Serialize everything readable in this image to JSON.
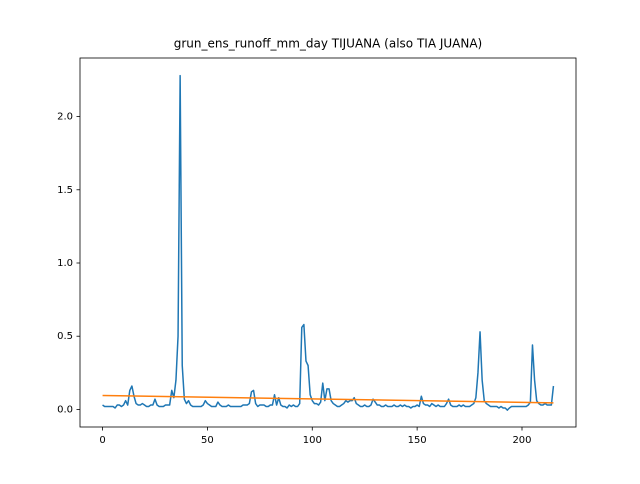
{
  "chart_data": {
    "type": "line",
    "title": "grun_ens_runoff_mm_day TIJUANA (also TIA JUANA)",
    "xlim": [
      -10.75,
      225.75
    ],
    "ylim": [
      -0.12,
      2.4
    ],
    "xticks": [
      0,
      50,
      100,
      150,
      200
    ],
    "yticks": [
      {
        "value": 0,
        "label": "0.0"
      },
      0.5,
      {
        "value": 1,
        "label": "1.0"
      },
      1.5,
      {
        "value": 2,
        "label": "2.0"
      }
    ],
    "grid": false,
    "series": [
      {
        "color": "#1f77b4",
        "x": [
          0,
          1,
          2,
          3,
          4,
          5,
          6,
          7,
          8,
          9,
          10,
          11,
          12,
          13,
          14,
          15,
          16,
          17,
          18,
          19,
          20,
          21,
          22,
          23,
          24,
          25,
          26,
          27,
          28,
          29,
          30,
          31,
          32,
          33,
          34,
          35,
          36,
          37,
          38,
          39,
          40,
          41,
          42,
          43,
          44,
          45,
          46,
          47,
          48,
          49,
          50,
          51,
          52,
          53,
          54,
          55,
          56,
          57,
          58,
          59,
          60,
          61,
          62,
          63,
          64,
          65,
          66,
          67,
          68,
          69,
          70,
          71,
          72,
          73,
          74,
          75,
          76,
          77,
          78,
          79,
          80,
          81,
          82,
          83,
          84,
          85,
          86,
          87,
          88,
          89,
          90,
          91,
          92,
          93,
          94,
          95,
          96,
          97,
          98,
          99,
          100,
          101,
          102,
          103,
          104,
          105,
          106,
          107,
          108,
          109,
          110,
          111,
          112,
          113,
          114,
          115,
          116,
          117,
          118,
          119,
          120,
          121,
          122,
          123,
          124,
          125,
          126,
          127,
          128,
          129,
          130,
          131,
          132,
          133,
          134,
          135,
          136,
          137,
          138,
          139,
          140,
          141,
          142,
          143,
          144,
          145,
          146,
          147,
          148,
          149,
          150,
          151,
          152,
          153,
          154,
          155,
          156,
          157,
          158,
          159,
          160,
          161,
          162,
          163,
          164,
          165,
          166,
          167,
          168,
          169,
          170,
          171,
          172,
          173,
          174,
          175,
          176,
          177,
          178,
          179,
          180,
          181,
          182,
          183,
          184,
          185,
          186,
          187,
          188,
          189,
          190,
          191,
          192,
          193,
          194,
          195,
          196,
          197,
          198,
          199,
          200,
          201,
          202,
          203,
          204,
          205,
          206,
          207,
          208,
          209,
          210,
          211,
          212,
          213,
          214,
          215
        ],
        "values": [
          0.03,
          0.02,
          0.02,
          0.02,
          0.02,
          0.02,
          0.01,
          0.03,
          0.03,
          0.02,
          0.03,
          0.06,
          0.03,
          0.13,
          0.16,
          0.09,
          0.04,
          0.03,
          0.03,
          0.04,
          0.03,
          0.02,
          0.02,
          0.03,
          0.03,
          0.07,
          0.03,
          0.02,
          0.02,
          0.02,
          0.03,
          0.03,
          0.03,
          0.13,
          0.08,
          0.2,
          0.5,
          2.28,
          0.3,
          0.07,
          0.04,
          0.06,
          0.03,
          0.02,
          0.02,
          0.02,
          0.02,
          0.02,
          0.03,
          0.06,
          0.04,
          0.03,
          0.02,
          0.02,
          0.02,
          0.05,
          0.03,
          0.02,
          0.02,
          0.02,
          0.03,
          0.02,
          0.02,
          0.02,
          0.02,
          0.02,
          0.02,
          0.03,
          0.03,
          0.03,
          0.04,
          0.12,
          0.13,
          0.04,
          0.02,
          0.03,
          0.03,
          0.03,
          0.02,
          0.02,
          0.03,
          0.03,
          0.1,
          0.03,
          0.08,
          0.03,
          0.02,
          0.02,
          0.01,
          0.03,
          0.02,
          0.03,
          0.02,
          0.02,
          0.04,
          0.56,
          0.58,
          0.33,
          0.3,
          0.1,
          0.06,
          0.04,
          0.04,
          0.03,
          0.05,
          0.18,
          0.06,
          0.14,
          0.14,
          0.06,
          0.04,
          0.03,
          0.02,
          0.02,
          0.03,
          0.04,
          0.06,
          0.05,
          0.06,
          0.06,
          0.08,
          0.04,
          0.03,
          0.02,
          0.02,
          0.03,
          0.02,
          0.02,
          0.03,
          0.07,
          0.05,
          0.03,
          0.03,
          0.02,
          0.02,
          0.03,
          0.02,
          0.02,
          0.02,
          0.03,
          0.02,
          0.02,
          0.03,
          0.02,
          0.03,
          0.02,
          0.02,
          0.01,
          0.02,
          0.02,
          0.03,
          0.02,
          0.09,
          0.04,
          0.03,
          0.03,
          0.02,
          0.04,
          0.03,
          0.02,
          0.03,
          0.02,
          0.02,
          0.02,
          0.04,
          0.07,
          0.03,
          0.02,
          0.02,
          0.02,
          0.03,
          0.02,
          0.03,
          0.02,
          0.02,
          0.02,
          0.03,
          0.04,
          0.08,
          0.25,
          0.53,
          0.2,
          0.06,
          0.04,
          0.03,
          0.02,
          0.02,
          0.02,
          0.02,
          0.01,
          0.02,
          0.01,
          0.01,
          -0.005,
          0.01,
          0.02,
          0.02,
          0.02,
          0.02,
          0.02,
          0.02,
          0.02,
          0.02,
          0.03,
          0.05,
          0.44,
          0.2,
          0.06,
          0.04,
          0.03,
          0.03,
          0.04,
          0.03,
          0.03,
          0.03,
          0.16
        ]
      },
      {
        "color": "#ff7f0e",
        "x": [
          0,
          215
        ],
        "values": [
          0.095,
          0.045
        ]
      }
    ]
  }
}
